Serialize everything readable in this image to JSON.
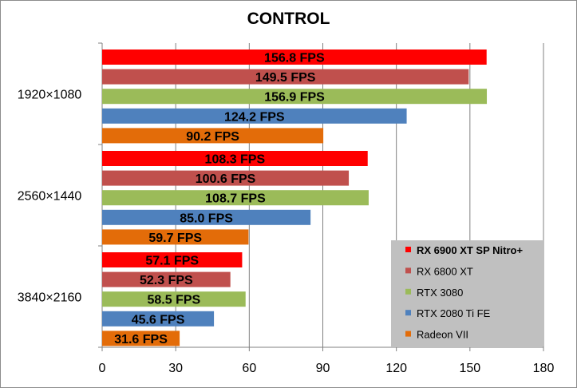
{
  "chart_data": {
    "type": "bar",
    "orientation": "horizontal",
    "title": "CONTROL",
    "xlabel": "",
    "ylabel": "",
    "xlim": [
      0,
      180
    ],
    "x_ticks": [
      "0",
      "30",
      "60",
      "90",
      "120",
      "150",
      "180"
    ],
    "grid": "vertical",
    "legend_position": "right",
    "categories": [
      "1920×1080",
      "2560×1440",
      "3840×2160"
    ],
    "value_suffix": " FPS",
    "series": [
      {
        "name": "RX 6900 XT SP Nitro+",
        "color": "#ff0000",
        "values": [
          156.8,
          108.3,
          57.1
        ],
        "labels": [
          "156.8 FPS",
          "108.3 FPS",
          "57.1 FPS"
        ]
      },
      {
        "name": "RX 6800 XT",
        "color": "#c0504d",
        "values": [
          149.5,
          100.6,
          52.3
        ],
        "labels": [
          "149.5 FPS",
          "100.6 FPS",
          "52.3 FPS"
        ]
      },
      {
        "name": "RTX 3080",
        "color": "#9bbb59",
        "values": [
          156.9,
          108.7,
          58.5
        ],
        "labels": [
          "156.9 FPS",
          "108.7 FPS",
          "58.5 FPS"
        ]
      },
      {
        "name": "RTX 2080 Ti FE",
        "color": "#4f81bd",
        "values": [
          124.2,
          85.0,
          45.6
        ],
        "labels": [
          "124.2 FPS",
          "85.0 FPS",
          "45.6 FPS"
        ]
      },
      {
        "name": "Radeon VII",
        "color": "#e36c09",
        "values": [
          90.2,
          59.7,
          31.6
        ],
        "labels": [
          "90.2 FPS",
          "59.7 FPS",
          "31.6 FPS"
        ]
      }
    ],
    "legend_bold": [
      true,
      false,
      false,
      false,
      false
    ]
  }
}
